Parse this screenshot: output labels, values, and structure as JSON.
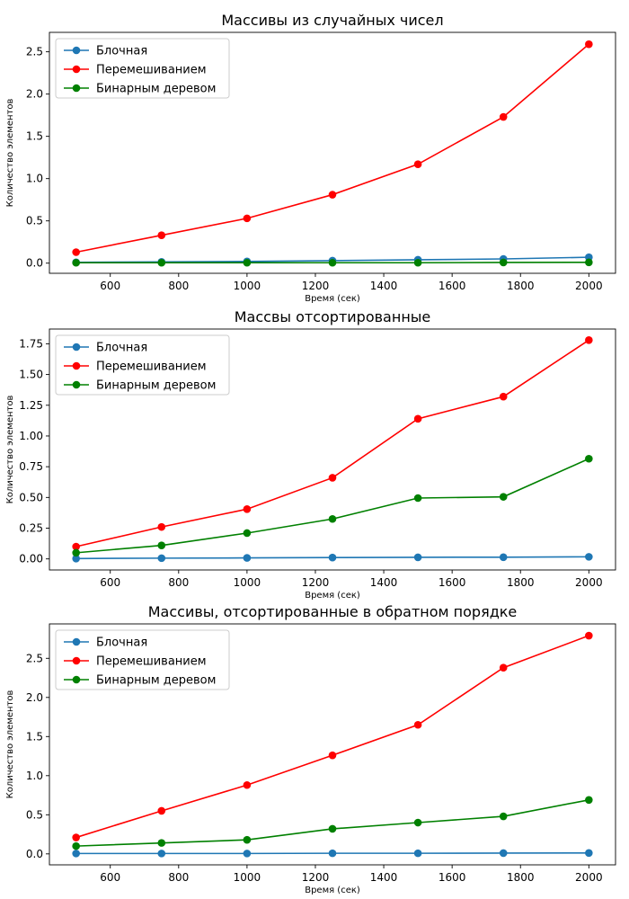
{
  "chart_data": [
    {
      "type": "line",
      "title": "Массивы из случайных чисел",
      "xlabel": "Время (сек)",
      "ylabel": "Количество элементов",
      "x": [
        500,
        750,
        1000,
        1250,
        1500,
        1750,
        2000
      ],
      "xlim": [
        422,
        2078
      ],
      "ylim": [
        -0.12,
        2.73
      ],
      "xticks": [
        600,
        800,
        1000,
        1200,
        1400,
        1600,
        1800,
        2000
      ],
      "yticks": [
        0.0,
        0.5,
        1.0,
        1.5,
        2.0,
        2.5
      ],
      "ytick_labels": [
        "0.0",
        "0.5",
        "1.0",
        "1.5",
        "2.0",
        "2.5"
      ],
      "grid": false,
      "legend_position": "top-left",
      "series": [
        {
          "name": "Блочная",
          "color": "#1f77b4",
          "values": [
            0.01,
            0.015,
            0.02,
            0.03,
            0.04,
            0.05,
            0.07
          ]
        },
        {
          "name": "Перемешиванием",
          "color": "#ff0000",
          "values": [
            0.13,
            0.33,
            0.53,
            0.81,
            1.17,
            1.73,
            2.59
          ]
        },
        {
          "name": "Бинарным деревом",
          "color": "#008000",
          "values": [
            0.005,
            0.005,
            0.005,
            0.005,
            0.005,
            0.008,
            0.01
          ]
        }
      ]
    },
    {
      "type": "line",
      "title": "Массвы отсортированные",
      "xlabel": "Время (сек)",
      "ylabel": "Количество элементов",
      "x": [
        500,
        750,
        1000,
        1250,
        1500,
        1750,
        2000
      ],
      "xlim": [
        422,
        2078
      ],
      "ylim": [
        -0.09,
        1.87
      ],
      "xticks": [
        600,
        800,
        1000,
        1200,
        1400,
        1600,
        1800,
        2000
      ],
      "yticks": [
        0.0,
        0.25,
        0.5,
        0.75,
        1.0,
        1.25,
        1.5,
        1.75
      ],
      "ytick_labels": [
        "0.00",
        "0.25",
        "0.50",
        "0.75",
        "1.00",
        "1.25",
        "1.50",
        "1.75"
      ],
      "grid": false,
      "legend_position": "top-left",
      "series": [
        {
          "name": "Блочная",
          "color": "#1f77b4",
          "values": [
            0.003,
            0.006,
            0.008,
            0.011,
            0.013,
            0.014,
            0.017
          ]
        },
        {
          "name": "Перемешиванием",
          "color": "#ff0000",
          "values": [
            0.1,
            0.26,
            0.405,
            0.66,
            1.14,
            1.32,
            1.78
          ]
        },
        {
          "name": "Бинарным деревом",
          "color": "#008000",
          "values": [
            0.05,
            0.11,
            0.21,
            0.325,
            0.495,
            0.505,
            0.815
          ]
        }
      ]
    },
    {
      "type": "line",
      "title": "Массивы, отсортированные в обратном порядке",
      "xlabel": "Время (сек)",
      "ylabel": "Количество элементов",
      "x": [
        500,
        750,
        1000,
        1250,
        1500,
        1750,
        2000
      ],
      "xlim": [
        422,
        2078
      ],
      "ylim": [
        -0.14,
        2.94
      ],
      "xticks": [
        600,
        800,
        1000,
        1200,
        1400,
        1600,
        1800,
        2000
      ],
      "yticks": [
        0.0,
        0.5,
        1.0,
        1.5,
        2.0,
        2.5
      ],
      "ytick_labels": [
        "0.0",
        "0.5",
        "1.0",
        "1.5",
        "2.0",
        "2.5"
      ],
      "grid": false,
      "legend_position": "top-left",
      "series": [
        {
          "name": "Блочная",
          "color": "#1f77b4",
          "values": [
            0.005,
            0.005,
            0.005,
            0.008,
            0.008,
            0.01,
            0.012
          ]
        },
        {
          "name": "Перемешиванием",
          "color": "#ff0000",
          "values": [
            0.21,
            0.55,
            0.88,
            1.26,
            1.65,
            2.38,
            2.79
          ]
        },
        {
          "name": "Бинарным деревом",
          "color": "#008000",
          "values": [
            0.1,
            0.14,
            0.18,
            0.32,
            0.4,
            0.48,
            0.69
          ]
        }
      ]
    }
  ]
}
